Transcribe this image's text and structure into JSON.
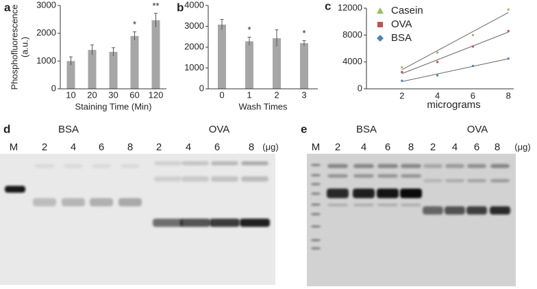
{
  "chart_data": [
    {
      "type": "bar",
      "panel": "a",
      "ylabel": [
        "Phosphofluorescence",
        "(a.u.)"
      ],
      "xlabel": "Staining Time (Min)",
      "categories": [
        "10",
        "20",
        "30",
        "60",
        "120"
      ],
      "values": [
        1000,
        1400,
        1330,
        1900,
        2470
      ],
      "errors": [
        150,
        180,
        150,
        150,
        250
      ],
      "significance": [
        null,
        null,
        null,
        "*",
        "**"
      ],
      "color": "#a6a6a6",
      "ylim": [
        0,
        3000
      ],
      "yticks": [
        0,
        1000,
        2000,
        3000
      ]
    },
    {
      "type": "bar",
      "panel": "b",
      "xlabel": "Wash Times",
      "categories": [
        "0",
        "1",
        "2",
        "3"
      ],
      "values": [
        3080,
        2280,
        2430,
        2190
      ],
      "errors": [
        250,
        200,
        400,
        120
      ],
      "significance": [
        null,
        "*",
        null,
        "*"
      ],
      "color": "#a6a6a6",
      "ylim": [
        0,
        4000
      ],
      "yticks": [
        0,
        1000,
        2000,
        3000,
        4000
      ]
    },
    {
      "type": "scatter",
      "panel": "c",
      "xlabel": "micrograms",
      "legend": "top-left",
      "trendline": true,
      "x": [
        2,
        4,
        6,
        8
      ],
      "series": [
        {
          "name": "Casein",
          "color": "#9bbb59",
          "marker": "triangle",
          "values": [
            3200,
            5400,
            8000,
            11800
          ]
        },
        {
          "name": "OVA",
          "color": "#c0504d",
          "marker": "square",
          "values": [
            2500,
            4000,
            6300,
            8600
          ]
        },
        {
          "name": "BSA",
          "color": "#4f81bd",
          "marker": "diamond",
          "values": [
            1200,
            2000,
            3400,
            4500
          ]
        }
      ],
      "xlim": [
        0,
        8.3
      ],
      "xticks": [
        2,
        4,
        6,
        8
      ],
      "ylim": [
        0,
        12000
      ],
      "yticks": [
        0,
        4000,
        8000,
        12000
      ]
    }
  ],
  "gels": [
    {
      "panel": "d",
      "marker_lane": "M",
      "groups": [
        "BSA",
        "OVA"
      ],
      "lanes": [
        "2",
        "4",
        "6",
        "8",
        "2",
        "4",
        "6",
        "8"
      ],
      "unit": "(μg)"
    },
    {
      "panel": "e",
      "marker_lane": "M",
      "groups": [
        "BSA",
        "OVA"
      ],
      "lanes": [
        "2",
        "4",
        "6",
        "8",
        "2",
        "4",
        "6",
        "8"
      ],
      "unit": "(μg)"
    }
  ]
}
